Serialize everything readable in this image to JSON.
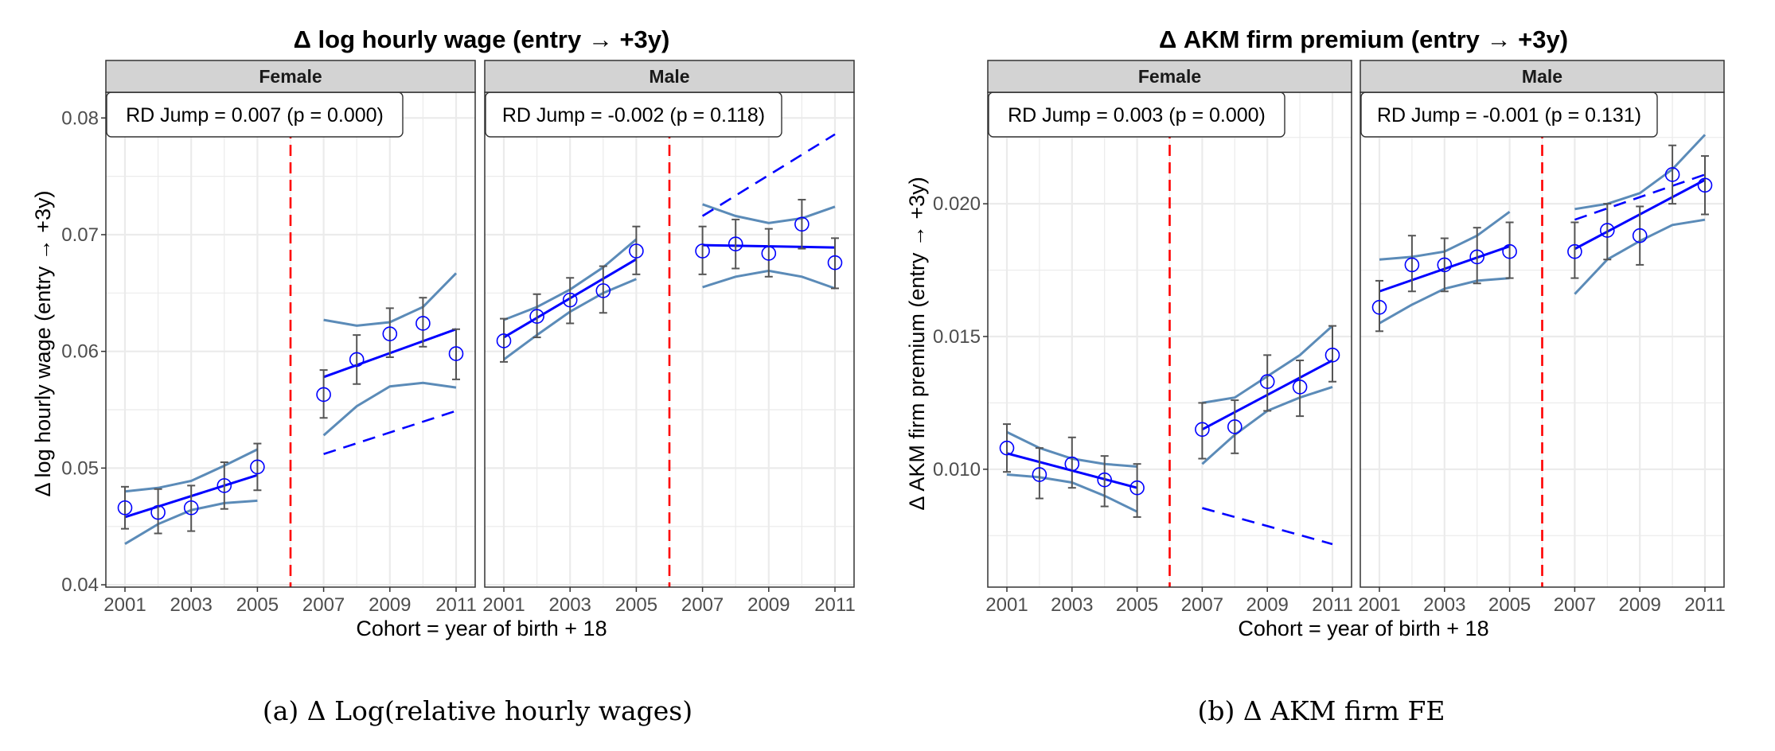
{
  "colors": {
    "point": "#0000ff",
    "fit": "#0000ff",
    "ci": "#5b8bb8",
    "errorbar": "#555555",
    "cutoff": "#ff0000",
    "counterfactual": "#0000ff",
    "strip_bg": "#d3d3d3",
    "grid": "#ebebeb"
  },
  "chart_data": [
    {
      "id": "a",
      "type": "scatter",
      "title": "Δ log hourly wage (entry → +3y)",
      "xlabel": "Cohort = year of birth + 18",
      "ylabel": "Δ log hourly wage (entry → +3y)",
      "caption": "(a) Δ Log(relative hourly wages)",
      "xlim": [
        2001,
        2011
      ],
      "xticks": [
        2001,
        2003,
        2005,
        2007,
        2009,
        2011
      ],
      "ylim": [
        0.0398,
        0.0822
      ],
      "yticks": [
        0.04,
        0.05,
        0.06,
        0.07,
        0.08
      ],
      "ytick_labels": [
        "0.04",
        "0.05",
        "0.06",
        "0.07",
        "0.08"
      ],
      "yminor": [
        0.045,
        0.055,
        0.065,
        0.075
      ],
      "cutoff": 2006,
      "grid": true,
      "panels": [
        {
          "name": "Female",
          "annotation": "RD Jump = 0.007 (p = 0.000)",
          "x": [
            2001,
            2002,
            2003,
            2004,
            2005,
            2007,
            2008,
            2009,
            2010,
            2011
          ],
          "y": [
            0.0466,
            0.0462,
            0.0466,
            0.0485,
            0.0501,
            0.0563,
            0.0593,
            0.0615,
            0.0624,
            0.0598
          ],
          "ci_low": [
            0.0448,
            0.0444,
            0.0446,
            0.0465,
            0.0481,
            0.0543,
            0.0572,
            0.0595,
            0.0604,
            0.0576
          ],
          "ci_high": [
            0.0484,
            0.0482,
            0.0485,
            0.0505,
            0.0521,
            0.0584,
            0.0614,
            0.0637,
            0.0646,
            0.0619
          ],
          "fit_pre": {
            "x": [
              2001,
              2005
            ],
            "y": [
              0.0458,
              0.0494
            ]
          },
          "fit_post": {
            "x": [
              2007,
              2011
            ],
            "y": [
              0.0578,
              0.0619
            ]
          },
          "band_pre": {
            "x": [
              2001,
              2002,
              2003,
              2004,
              2005
            ],
            "upper": [
              0.048,
              0.0483,
              0.0489,
              0.0502,
              0.0516
            ],
            "lower": [
              0.0435,
              0.0452,
              0.0464,
              0.047,
              0.0472
            ]
          },
          "band_post": {
            "x": [
              2007,
              2008,
              2009,
              2010,
              2011
            ],
            "upper": [
              0.0627,
              0.0622,
              0.0625,
              0.0638,
              0.0667
            ],
            "lower": [
              0.0528,
              0.0553,
              0.057,
              0.0573,
              0.0569
            ]
          },
          "counterfactual": {
            "x": [
              2007,
              2011
            ],
            "y": [
              0.0512,
              0.0549
            ]
          }
        },
        {
          "name": "Male",
          "annotation": "RD Jump = -0.002 (p = 0.118)",
          "x": [
            2001,
            2002,
            2003,
            2004,
            2005,
            2007,
            2008,
            2009,
            2010,
            2011
          ],
          "y": [
            0.0609,
            0.063,
            0.0644,
            0.0652,
            0.0686,
            0.0686,
            0.0692,
            0.0684,
            0.0709,
            0.0676
          ],
          "ci_low": [
            0.0591,
            0.0612,
            0.0624,
            0.0633,
            0.0666,
            0.0666,
            0.0671,
            0.0664,
            0.0688,
            0.0654
          ],
          "ci_high": [
            0.0628,
            0.0649,
            0.0663,
            0.0673,
            0.0707,
            0.0707,
            0.0713,
            0.0705,
            0.073,
            0.0697
          ],
          "fit_pre": {
            "x": [
              2001,
              2005
            ],
            "y": [
              0.0612,
              0.0679
            ]
          },
          "fit_post": {
            "x": [
              2007,
              2011
            ],
            "y": [
              0.0691,
              0.0689
            ]
          },
          "band_pre": {
            "x": [
              2001,
              2002,
              2003,
              2004,
              2005
            ],
            "upper": [
              0.0627,
              0.0638,
              0.0653,
              0.0672,
              0.0696
            ],
            "lower": [
              0.0593,
              0.0614,
              0.0634,
              0.065,
              0.0662
            ]
          },
          "band_post": {
            "x": [
              2007,
              2008,
              2009,
              2010,
              2011
            ],
            "upper": [
              0.0726,
              0.0716,
              0.071,
              0.0714,
              0.0724
            ],
            "lower": [
              0.0655,
              0.0664,
              0.0669,
              0.0664,
              0.0654
            ]
          },
          "counterfactual": {
            "x": [
              2007,
              2011
            ],
            "y": [
              0.0716,
              0.0786
            ]
          }
        }
      ]
    },
    {
      "id": "b",
      "type": "scatter",
      "title": "Δ AKM firm premium (entry → +3y)",
      "xlabel": "Cohort = year of birth + 18",
      "ylabel": "Δ AKM firm premium (entry → +3y)",
      "caption": "(b) Δ AKM firm FE",
      "xlim": [
        2001,
        2011
      ],
      "xticks": [
        2001,
        2003,
        2005,
        2007,
        2009,
        2011
      ],
      "ylim": [
        0.00556,
        0.0242
      ],
      "yticks": [
        0.01,
        0.015,
        0.02
      ],
      "ytick_labels": [
        "0.010",
        "0.015",
        "0.020"
      ],
      "yminor": [
        0.0075,
        0.0125,
        0.0175,
        0.0225
      ],
      "cutoff": 2006,
      "grid": true,
      "panels": [
        {
          "name": "Female",
          "annotation": "RD Jump = 0.003 (p = 0.000)",
          "x": [
            2001,
            2002,
            2003,
            2004,
            2005,
            2007,
            2008,
            2009,
            2010,
            2011
          ],
          "y": [
            0.0108,
            0.0098,
            0.0102,
            0.0096,
            0.0093,
            0.0115,
            0.0116,
            0.0133,
            0.0131,
            0.0143
          ],
          "ci_low": [
            0.0099,
            0.0089,
            0.0093,
            0.0086,
            0.0082,
            0.0104,
            0.0106,
            0.0122,
            0.012,
            0.0133
          ],
          "ci_high": [
            0.0117,
            0.0108,
            0.0112,
            0.0105,
            0.0102,
            0.0125,
            0.0126,
            0.0143,
            0.0141,
            0.0154
          ],
          "fit_pre": {
            "x": [
              2001,
              2005
            ],
            "y": [
              0.0106,
              0.0093
            ]
          },
          "fit_post": {
            "x": [
              2007,
              2011
            ],
            "y": [
              0.0115,
              0.0141
            ]
          },
          "band_pre": {
            "x": [
              2001,
              2002,
              2003,
              2004,
              2005
            ],
            "upper": [
              0.0114,
              0.0108,
              0.0104,
              0.0102,
              0.0101
            ],
            "lower": [
              0.0098,
              0.0097,
              0.0095,
              0.009,
              0.0084
            ]
          },
          "band_post": {
            "x": [
              2007,
              2008,
              2009,
              2010,
              2011
            ],
            "upper": [
              0.0125,
              0.0127,
              0.0135,
              0.0143,
              0.0154
            ],
            "lower": [
              0.0102,
              0.0113,
              0.0122,
              0.0127,
              0.0131
            ]
          },
          "counterfactual": {
            "x": [
              2007,
              2011
            ],
            "y": [
              0.00854,
              0.00718
            ]
          }
        },
        {
          "name": "Male",
          "annotation": "RD Jump = -0.001 (p = 0.131)",
          "x": [
            2001,
            2002,
            2003,
            2004,
            2005,
            2007,
            2008,
            2009,
            2010,
            2011
          ],
          "y": [
            0.0161,
            0.0177,
            0.0177,
            0.018,
            0.0182,
            0.0182,
            0.019,
            0.0188,
            0.0211,
            0.0207
          ],
          "ci_low": [
            0.0152,
            0.0167,
            0.0167,
            0.017,
            0.0172,
            0.0172,
            0.0179,
            0.0177,
            0.02,
            0.0196
          ],
          "ci_high": [
            0.0171,
            0.0188,
            0.0187,
            0.0191,
            0.0193,
            0.0193,
            0.02,
            0.0199,
            0.0222,
            0.0218
          ],
          "fit_pre": {
            "x": [
              2001,
              2005
            ],
            "y": [
              0.0167,
              0.0184
            ]
          },
          "fit_post": {
            "x": [
              2007,
              2011
            ],
            "y": [
              0.0183,
              0.0209
            ]
          },
          "band_pre": {
            "x": [
              2001,
              2002,
              2003,
              2004,
              2005
            ],
            "upper": [
              0.0179,
              0.018,
              0.0182,
              0.0188,
              0.0197
            ],
            "lower": [
              0.0155,
              0.0162,
              0.0168,
              0.0171,
              0.0172
            ]
          },
          "band_post": {
            "x": [
              2007,
              2008,
              2009,
              2010,
              2011
            ],
            "upper": [
              0.0198,
              0.02,
              0.0204,
              0.0213,
              0.0226
            ],
            "lower": [
              0.0166,
              0.0179,
              0.0186,
              0.0192,
              0.0194
            ]
          },
          "counterfactual": {
            "x": [
              2007,
              2011
            ],
            "y": [
              0.0194,
              0.0211
            ]
          }
        }
      ]
    }
  ]
}
